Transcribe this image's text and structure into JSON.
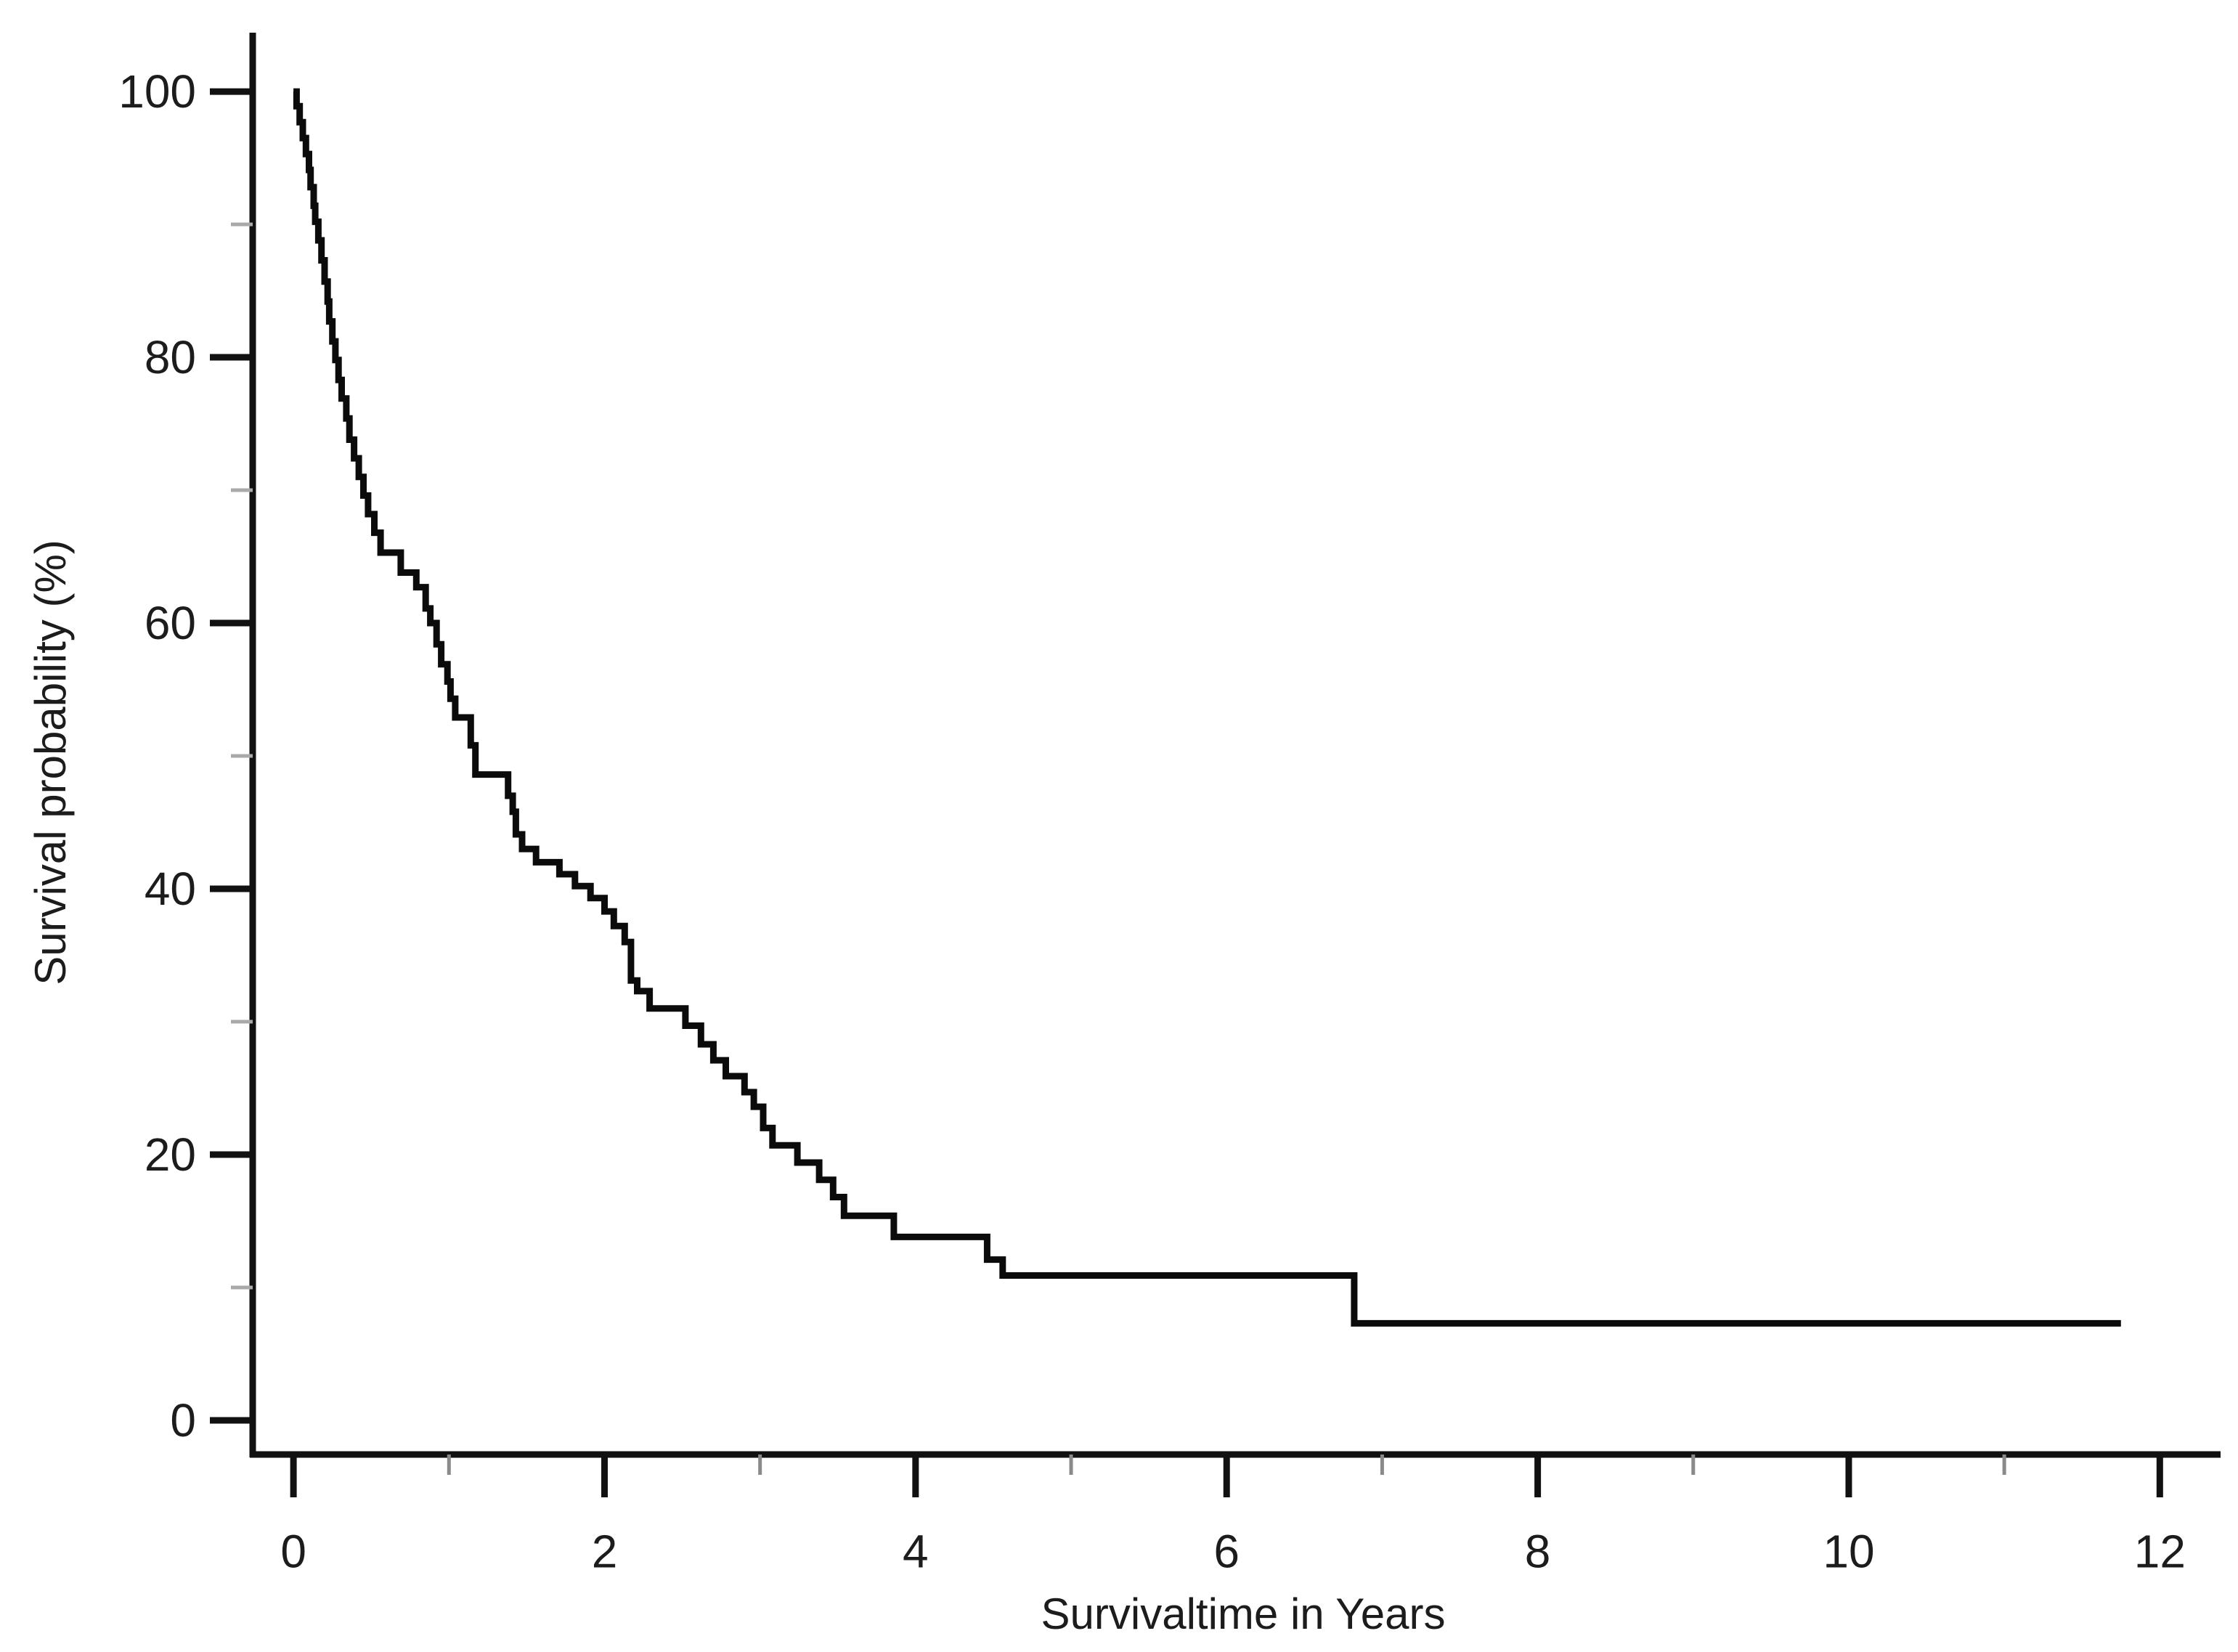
{
  "figure": {
    "background": "#ffffff"
  },
  "chart_data": {
    "type": "line",
    "line_style": "step-post",
    "description": "Kaplan-Meier survival curve, single series, black step line on white background, no grid, no legend, no title",
    "title": "",
    "xlabel": "Survivaltime in Years",
    "ylabel": "Survival probability (%)",
    "xlim": [
      -0.262,
      12.4
    ],
    "ylim": [
      -2.57,
      104.43
    ],
    "x_axis_range_shown": [
      0,
      12
    ],
    "y_axis_range_shown": [
      0,
      100
    ],
    "x_major_ticks": [
      0,
      2,
      4,
      6,
      8,
      10,
      12
    ],
    "x_minor_ticks": [
      1,
      3,
      5,
      7,
      9,
      11
    ],
    "y_major_ticks": [
      0,
      20,
      40,
      60,
      80,
      100
    ],
    "y_minor_ticks": [
      10,
      30,
      50,
      70,
      90
    ],
    "grid": false,
    "legend": false,
    "colors": {
      "curve": "#0b0b0b",
      "axis": "#111111",
      "major_tick": "#111111",
      "minor_tick_x": "#8a8a8a",
      "minor_tick_y": "#a9a9a9",
      "text": "#1c1c1c",
      "background": "#ffffff"
    },
    "series": [
      {
        "name": "survival-curve",
        "color": "#0b0b0b",
        "end_time_years": 11.75,
        "steps_time_survival_pct": [
          [
            0.0,
            100.0
          ],
          [
            0.02,
            98.9
          ],
          [
            0.04,
            97.7
          ],
          [
            0.06,
            96.5
          ],
          [
            0.08,
            95.3
          ],
          [
            0.1,
            94.1
          ],
          [
            0.11,
            92.8
          ],
          [
            0.13,
            91.4
          ],
          [
            0.14,
            90.2
          ],
          [
            0.16,
            88.8
          ],
          [
            0.18,
            87.3
          ],
          [
            0.2,
            85.7
          ],
          [
            0.22,
            84.2
          ],
          [
            0.23,
            82.7
          ],
          [
            0.25,
            81.2
          ],
          [
            0.27,
            79.8
          ],
          [
            0.29,
            78.3
          ],
          [
            0.31,
            76.9
          ],
          [
            0.34,
            75.4
          ],
          [
            0.36,
            73.8
          ],
          [
            0.39,
            72.4
          ],
          [
            0.42,
            71.0
          ],
          [
            0.45,
            69.6
          ],
          [
            0.48,
            68.2
          ],
          [
            0.52,
            66.8
          ],
          [
            0.56,
            65.3
          ],
          [
            0.69,
            63.8
          ],
          [
            0.79,
            62.7
          ],
          [
            0.85,
            61.1
          ],
          [
            0.88,
            60.0
          ],
          [
            0.92,
            58.4
          ],
          [
            0.95,
            56.9
          ],
          [
            0.99,
            55.6
          ],
          [
            1.01,
            54.3
          ],
          [
            1.04,
            52.9
          ],
          [
            1.14,
            50.8
          ],
          [
            1.17,
            48.6
          ],
          [
            1.38,
            47.0
          ],
          [
            1.41,
            45.8
          ],
          [
            1.43,
            44.1
          ],
          [
            1.47,
            43.0
          ],
          [
            1.56,
            42.0
          ],
          [
            1.71,
            41.1
          ],
          [
            1.81,
            40.2
          ],
          [
            1.91,
            39.3
          ],
          [
            2.0,
            38.3
          ],
          [
            2.06,
            37.2
          ],
          [
            2.13,
            36.0
          ],
          [
            2.17,
            33.1
          ],
          [
            2.21,
            32.3
          ],
          [
            2.29,
            31.0
          ],
          [
            2.52,
            29.7
          ],
          [
            2.62,
            28.3
          ],
          [
            2.7,
            27.1
          ],
          [
            2.78,
            25.9
          ],
          [
            2.9,
            24.7
          ],
          [
            2.96,
            23.6
          ],
          [
            3.02,
            22.0
          ],
          [
            3.08,
            20.7
          ],
          [
            3.24,
            19.4
          ],
          [
            3.38,
            18.1
          ],
          [
            3.47,
            16.8
          ],
          [
            3.54,
            15.4
          ],
          [
            3.86,
            13.8
          ],
          [
            4.46,
            12.1
          ],
          [
            4.56,
            10.9
          ],
          [
            6.82,
            7.3
          ]
        ]
      }
    ]
  }
}
